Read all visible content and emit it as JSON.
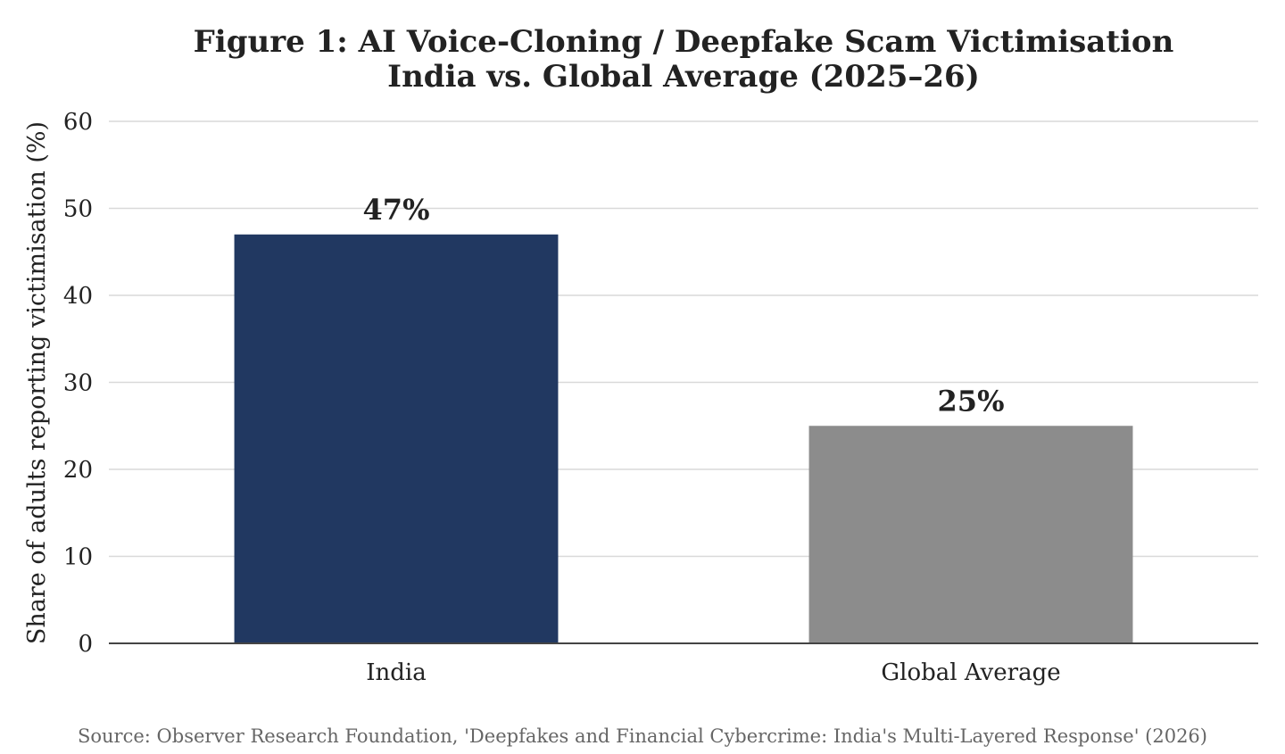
{
  "chart_data": {
    "type": "bar",
    "title_lines": [
      "Figure 1: AI Voice-Cloning / Deepfake Scam Victimisation",
      "India vs. Global Average (2025–26)"
    ],
    "categories": [
      "India",
      "Global Average"
    ],
    "values": [
      47,
      25
    ],
    "data_labels": [
      "47%",
      "25%"
    ],
    "colors": [
      "#213861",
      "#8c8c8c"
    ],
    "ylabel": "Share of adults reporting victimisation (%)",
    "xlabel": "",
    "ylim": [
      0,
      60
    ],
    "yticks": [
      0,
      10,
      20,
      30,
      40,
      50,
      60
    ],
    "grid": true,
    "legend": "none",
    "source": "Source: Observer Research Foundation, 'Deepfakes and Financial Cybercrime: India's Multi-Layered Response' (2026)"
  }
}
